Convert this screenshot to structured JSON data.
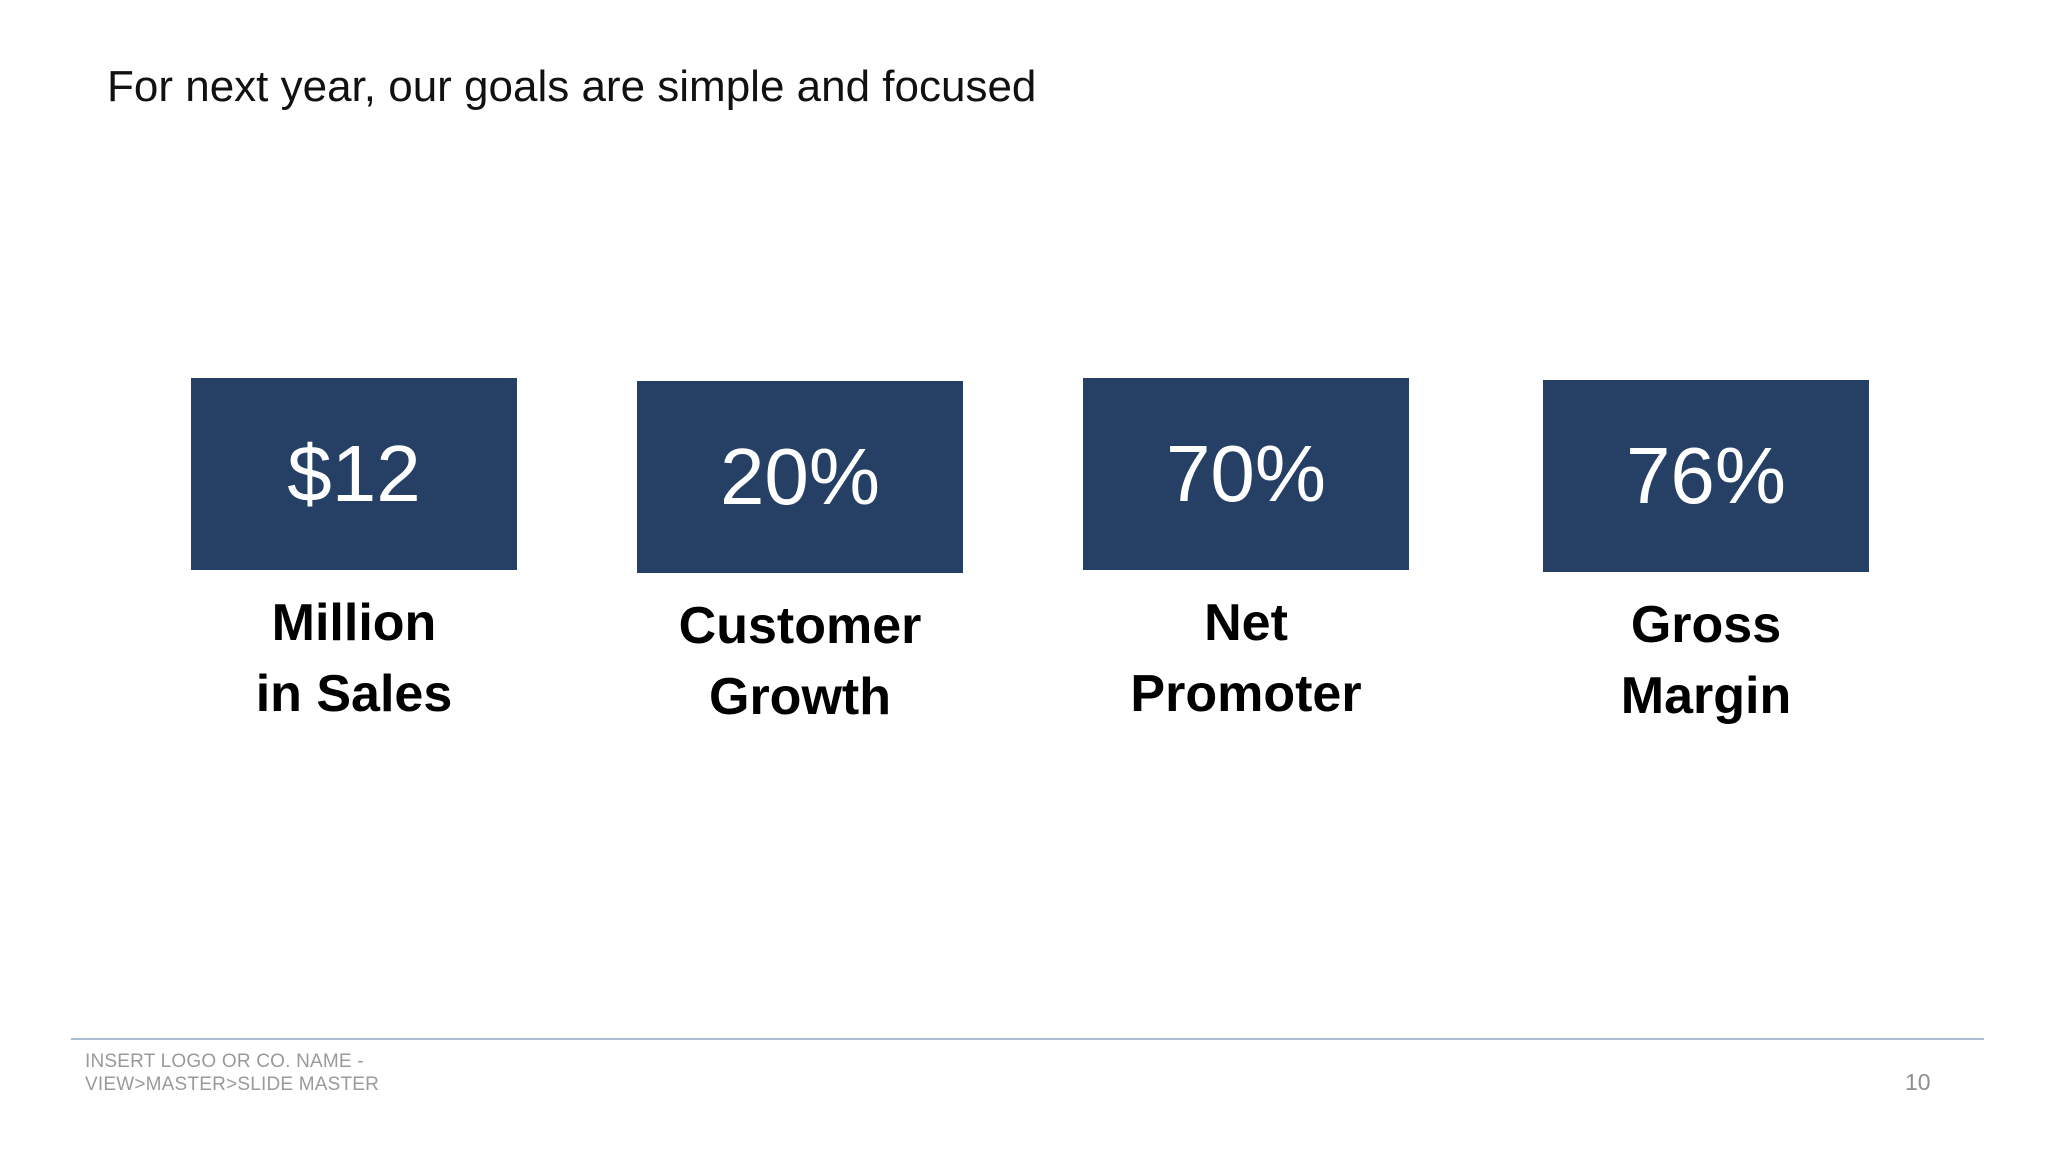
{
  "slide": {
    "title": "For next year, our goals are simple and focused",
    "accent_color": "#263f64",
    "metrics": [
      {
        "value": "$12",
        "label_line1": "Million",
        "label_line2": "in Sales"
      },
      {
        "value": "20%",
        "label_line1": "Customer",
        "label_line2": "Growth"
      },
      {
        "value": "70%",
        "label_line1": "Net",
        "label_line2": "Promoter"
      },
      {
        "value": "76%",
        "label_line1": "Gross",
        "label_line2": "Margin"
      }
    ]
  },
  "footer": {
    "line1": "INSERT LOGO OR CO. NAME -",
    "line2": "VIEW>MASTER>SLIDE MASTER",
    "page_number": "10"
  }
}
